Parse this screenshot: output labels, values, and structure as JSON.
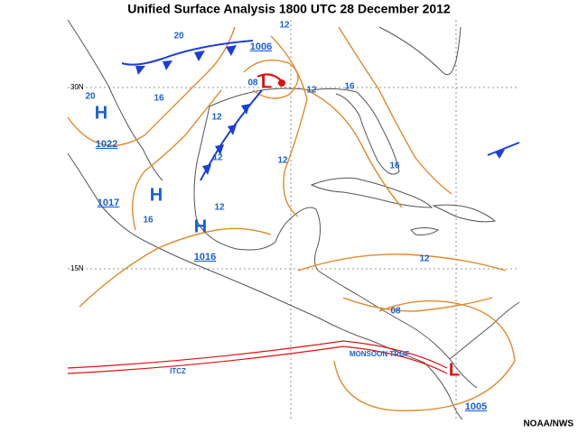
{
  "header": {
    "title": "Unified Surface Analysis 1800 UTC 28 December 2012"
  },
  "footer": {
    "credit": "NOAA/NWS"
  },
  "latitudes": [
    "30N",
    "15N"
  ],
  "pressure_centers": [
    {
      "letter": "H",
      "value": 1022
    },
    {
      "letter": "H",
      "value": 1017
    },
    {
      "letter": "H",
      "value": 1016
    },
    {
      "letter": "L",
      "value": 1006
    },
    {
      "letter": "L",
      "value": 1005
    }
  ],
  "isobar_labels": [
    "20",
    "20",
    "16",
    "16",
    "16",
    "16",
    "12",
    "12",
    "12",
    "12",
    "12",
    "12",
    "12",
    "08",
    "08"
  ],
  "features": {
    "itcz": "ITCZ",
    "monsoon": "MONSOON TROF"
  }
}
